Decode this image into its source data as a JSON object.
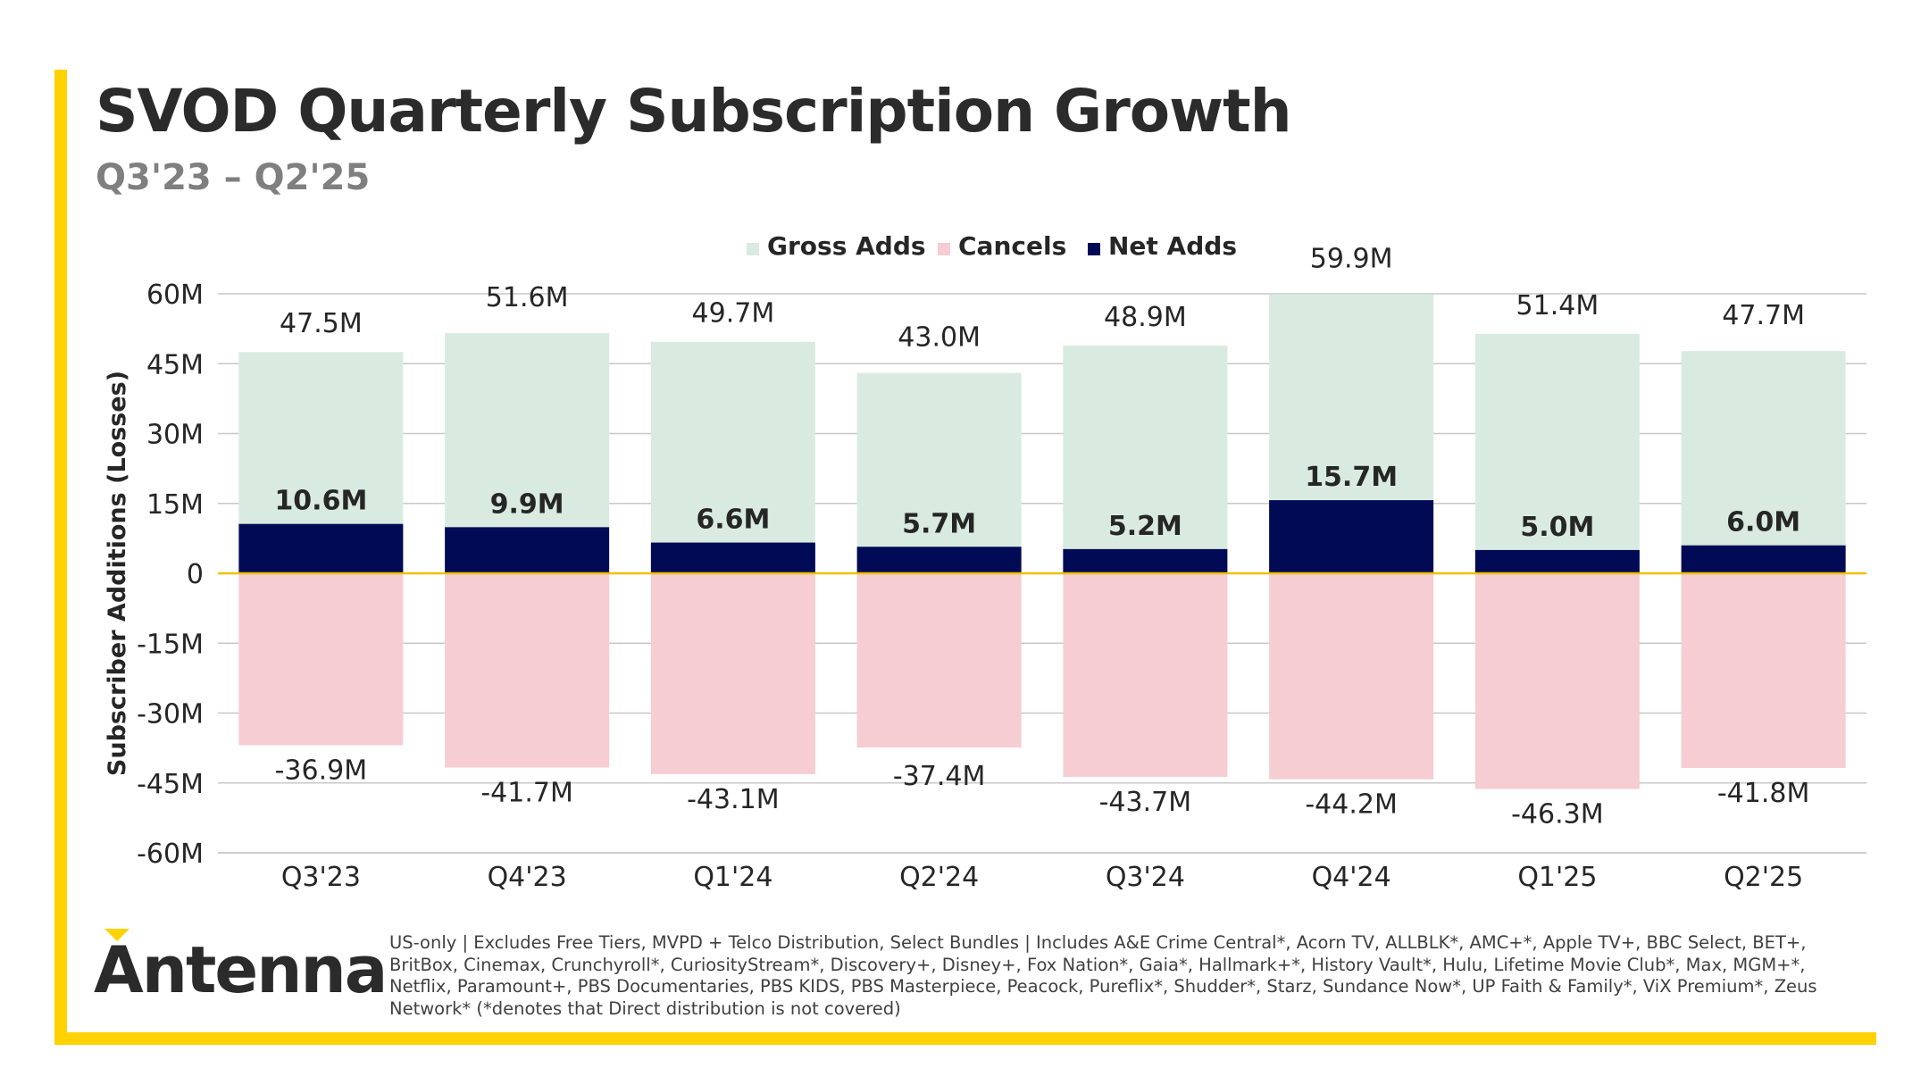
{
  "title": "SVOD Quarterly Subscription Growth",
  "subtitle": "Q3'23 – Q2'25",
  "logo_text": "Antenna",
  "footnote": "US-only | Excludes Free Tiers, MVPD + Telco Distribution, Select Bundles | Includes A&E Crime Central*, Acorn TV, ALLBLK*, AMC+*, Apple TV+, BBC Select, BET+, BritBox, Cinemax, Crunchyroll*, CuriosityStream*, Discovery+, Disney+, Fox Nation*, Gaia*, Hallmark+*, History Vault*, Hulu, Lifetime Movie Club*, Max, MGM+*, Netflix, Paramount+, PBS Documentaries, PBS KIDS, PBS Masterpiece, Peacock, Pureflix*, Shudder*, Starz, Sundance Now*, UP Faith & Family*, ViX Premium*, Zeus Network* (*denotes that Direct distribution is not covered)",
  "colors": {
    "gross": "#D9EBE0",
    "cancels": "#F6CDD2",
    "net": "#000A55",
    "zero_line": "#F0C000",
    "accent": "#FFD200"
  },
  "chart_data": {
    "type": "bar",
    "title": "SVOD Quarterly Subscription Growth",
    "subtitle": "Q3'23 – Q2'25",
    "xlabel": "",
    "ylabel": "Subscriber Additions (Losses)",
    "ylim": [
      -60,
      60
    ],
    "yticks": [
      60,
      45,
      30,
      15,
      0,
      -15,
      -30,
      -45,
      -60
    ],
    "ytick_labels": [
      "60M",
      "45M",
      "30M",
      "15M",
      "0",
      "-15M",
      "-30M",
      "-45M",
      "-60M"
    ],
    "grid": true,
    "legend_position": "top",
    "categories": [
      "Q3'23",
      "Q4'23",
      "Q1'24",
      "Q2'24",
      "Q3'24",
      "Q4'24",
      "Q1'25",
      "Q2'25"
    ],
    "series": [
      {
        "name": "Gross Adds",
        "values": [
          47.5,
          51.6,
          49.7,
          43.0,
          48.9,
          59.9,
          51.4,
          47.7
        ],
        "labels": [
          "47.5M",
          "51.6M",
          "49.7M",
          "43.0M",
          "48.9M",
          "59.9M",
          "51.4M",
          "47.7M"
        ]
      },
      {
        "name": "Cancels",
        "values": [
          -36.9,
          -41.7,
          -43.1,
          -37.4,
          -43.7,
          -44.2,
          -46.3,
          -41.8
        ],
        "labels": [
          "-36.9M",
          "-41.7M",
          "-43.1M",
          "-37.4M",
          "-43.7M",
          "-44.2M",
          "-46.3M",
          "-41.8M"
        ]
      },
      {
        "name": "Net Adds",
        "values": [
          10.6,
          9.9,
          6.6,
          5.7,
          5.2,
          15.7,
          5.0,
          6.0
        ],
        "labels": [
          "10.6M",
          "9.9M",
          "6.6M",
          "5.7M",
          "5.2M",
          "15.7M",
          "5.0M",
          "6.0M"
        ]
      }
    ]
  }
}
